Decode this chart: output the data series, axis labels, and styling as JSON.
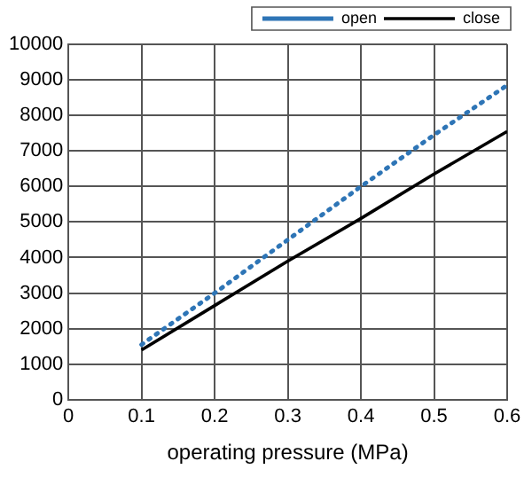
{
  "chart_data": {
    "type": "line",
    "xlabel": "operating pressure (MPa)",
    "x": [
      0.1,
      0.2,
      0.3,
      0.4,
      0.5,
      0.6
    ],
    "series": [
      {
        "name": "open",
        "color": "#2e75b6",
        "line_style": "dotted",
        "values": [
          1550,
          3000,
          4500,
          6000,
          7450,
          8850
        ]
      },
      {
        "name": "close",
        "color": "#000000",
        "line_style": "solid",
        "values": [
          1400,
          2650,
          3900,
          5100,
          6350,
          7550
        ]
      }
    ],
    "xlim": [
      0,
      0.6
    ],
    "xticks": [
      0,
      0.1,
      0.2,
      0.3,
      0.4,
      0.5,
      0.6
    ],
    "ylim": [
      0,
      10000
    ],
    "yticks": [
      0,
      1000,
      2000,
      3000,
      4000,
      5000,
      6000,
      7000,
      8000,
      9000,
      10000
    ],
    "grid": true,
    "legend": "top right",
    "marker": "none"
  }
}
